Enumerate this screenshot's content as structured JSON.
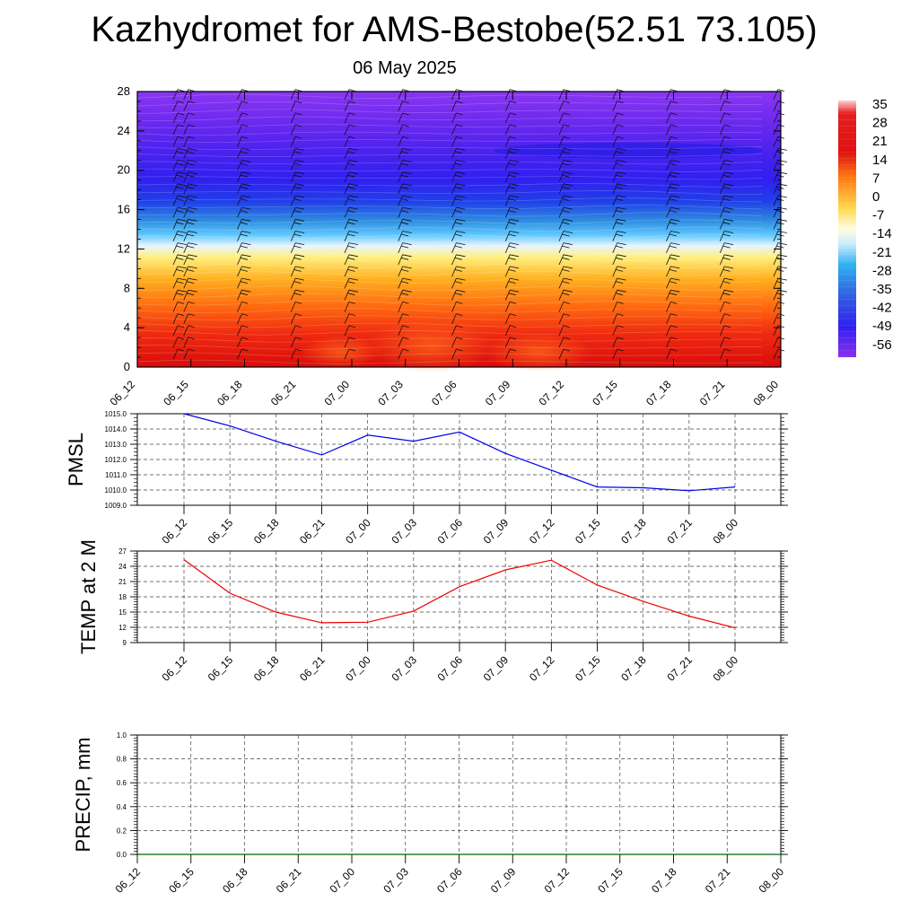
{
  "header": {
    "title": "Kazhydromet for AMS-Bestobe(52.51 73.105)",
    "subtitle": "06 May 2025"
  },
  "chart_data": [
    {
      "type": "heatmap",
      "description_axes": "time vs height",
      "x_categories": [
        "06_12",
        "06_15",
        "06_18",
        "06_21",
        "07_00",
        "07_03",
        "07_06",
        "07_09",
        "07_12",
        "07_15",
        "07_18",
        "07_21",
        "08_00"
      ],
      "yticks": [
        0,
        4,
        8,
        12,
        16,
        20,
        24,
        28
      ],
      "ylim": [
        0,
        28
      ],
      "colorbar_labels": [
        "35",
        "28",
        "21",
        "14",
        "7",
        "0",
        "-7",
        "-14",
        "-21",
        "-28",
        "-35",
        "-42",
        "-49",
        "-56"
      ],
      "colors": {
        "warm": "#e01010",
        "mid": "#ffe040",
        "cold": "#2020ee",
        "top": "#8030f0"
      },
      "wind_barbs": true
    },
    {
      "type": "line",
      "ylabel": "PMSL",
      "x": [
        "06_12",
        "06_15",
        "06_18",
        "06_21",
        "07_00",
        "07_03",
        "07_06",
        "07_09",
        "07_12",
        "07_15",
        "07_18",
        "07_21",
        "08_00"
      ],
      "values": [
        1015.0,
        1014.2,
        1013.2,
        1012.3,
        1013.6,
        1013.2,
        1013.8,
        1012.4,
        1011.3,
        1010.2,
        1010.15,
        1009.95,
        1010.2
      ],
      "yticks": [
        "1009.0",
        "1010.0",
        "1011.0",
        "1012.0",
        "1013.0",
        "1014.0",
        "1015.0"
      ],
      "ylim": [
        1009,
        1015
      ],
      "color": "#0000ee",
      "grid": true
    },
    {
      "type": "line",
      "ylabel": "TEMP at 2 M",
      "x": [
        "06_12",
        "06_15",
        "06_18",
        "06_21",
        "07_00",
        "07_03",
        "07_06",
        "07_09",
        "07_12",
        "07_15",
        "07_18",
        "07_21",
        "08_00"
      ],
      "values": [
        25.3,
        18.7,
        15.0,
        12.9,
        13.0,
        15.2,
        20.0,
        23.3,
        25.2,
        20.3,
        17.1,
        14.2,
        11.9
      ],
      "yticks": [
        "9",
        "12",
        "15",
        "18",
        "21",
        "24",
        "27"
      ],
      "ylim": [
        9,
        27
      ],
      "color": "#ee0000",
      "grid": true
    },
    {
      "type": "line",
      "ylabel": "PRECIP, mm",
      "x": [
        "06_12",
        "06_15",
        "06_18",
        "06_21",
        "07_00",
        "07_03",
        "07_06",
        "07_09",
        "07_12",
        "07_15",
        "07_18",
        "07_21",
        "08_00"
      ],
      "values": [
        0,
        0,
        0,
        0,
        0,
        0,
        0,
        0,
        0,
        0,
        0,
        0,
        0
      ],
      "yticks": [
        "0.0",
        "0.2",
        "0.4",
        "0.6",
        "0.8",
        "1.0"
      ],
      "ylim": [
        0,
        1
      ],
      "color": "#006400",
      "grid": true
    }
  ]
}
